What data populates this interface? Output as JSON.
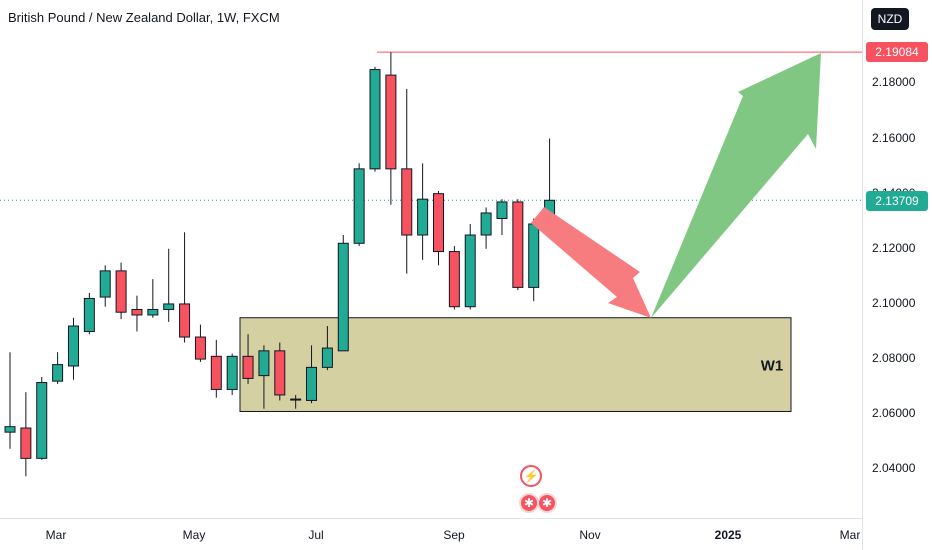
{
  "header": {
    "title": "British Pound / New Zealand Dollar, 1W, FXCM",
    "currency": "NZD"
  },
  "icons": {
    "event_flash": "lightning-icon",
    "event_flag": "uk-flag-icon"
  },
  "zone": {
    "label": "W1",
    "price_top": 2.0945,
    "price_bottom": 2.0605,
    "color": "#c9c48a"
  },
  "markers": {
    "high_price": "2.19084",
    "last_price": "2.13709"
  },
  "colors": {
    "up": "#22ab94",
    "down": "#f7525f",
    "arrow_down": "#f77c80",
    "arrow_up": "#81c784"
  },
  "chart_data": {
    "type": "candlestick",
    "title": "British Pound / New Zealand Dollar, 1W, FXCM",
    "ylim": [
      2.025,
      2.2
    ],
    "y_ticks": [
      "2.18000",
      "2.16000",
      "2.14000",
      "2.12000",
      "2.10000",
      "2.08000",
      "2.06000",
      "2.04000"
    ],
    "y_tick_values": [
      2.18,
      2.16,
      2.14,
      2.12,
      2.1,
      2.08,
      2.06,
      2.04
    ],
    "x_ticks": [
      "Mar",
      "May",
      "Jul",
      "Sep",
      "Nov",
      "2025",
      "Mar"
    ],
    "candles": [
      {
        "o": 2.053,
        "h": 2.082,
        "l": 2.047,
        "c": 2.055
      },
      {
        "o": 2.0545,
        "h": 2.0675,
        "l": 2.037,
        "c": 2.0435
      },
      {
        "o": 2.0435,
        "h": 2.073,
        "l": 2.043,
        "c": 2.071
      },
      {
        "o": 2.0715,
        "h": 2.082,
        "l": 2.0705,
        "c": 2.0775
      },
      {
        "o": 2.077,
        "h": 2.0945,
        "l": 2.072,
        "c": 2.0915
      },
      {
        "o": 2.0895,
        "h": 2.1035,
        "l": 2.0885,
        "c": 2.1015
      },
      {
        "o": 2.102,
        "h": 2.1135,
        "l": 2.0985,
        "c": 2.1115
      },
      {
        "o": 2.1115,
        "h": 2.1145,
        "l": 2.094,
        "c": 2.0965
      },
      {
        "o": 2.0975,
        "h": 2.1025,
        "l": 2.0895,
        "c": 2.0955
      },
      {
        "o": 2.0955,
        "h": 2.1085,
        "l": 2.0945,
        "c": 2.0975
      },
      {
        "o": 2.0975,
        "h": 2.1195,
        "l": 2.093,
        "c": 2.0995
      },
      {
        "o": 2.0995,
        "h": 2.1255,
        "l": 2.0855,
        "c": 2.0875
      },
      {
        "o": 2.0875,
        "h": 2.092,
        "l": 2.0785,
        "c": 2.0795
      },
      {
        "o": 2.0805,
        "h": 2.0865,
        "l": 2.0655,
        "c": 2.0685
      },
      {
        "o": 2.0685,
        "h": 2.0815,
        "l": 2.0665,
        "c": 2.0805
      },
      {
        "o": 2.0805,
        "h": 2.0885,
        "l": 2.0705,
        "c": 2.0725
      },
      {
        "o": 2.0735,
        "h": 2.0845,
        "l": 2.0615,
        "c": 2.0825
      },
      {
        "o": 2.0825,
        "h": 2.0855,
        "l": 2.0645,
        "c": 2.0665
      },
      {
        "o": 2.065,
        "h": 2.0665,
        "l": 2.0615,
        "c": 2.065
      },
      {
        "o": 2.0645,
        "h": 2.0845,
        "l": 2.0635,
        "c": 2.0765
      },
      {
        "o": 2.0765,
        "h": 2.0915,
        "l": 2.0755,
        "c": 2.0835
      },
      {
        "o": 2.0825,
        "h": 2.1245,
        "l": 2.0825,
        "c": 2.1215
      },
      {
        "o": 2.1215,
        "h": 2.1505,
        "l": 2.1205,
        "c": 2.1485
      },
      {
        "o": 2.1485,
        "h": 2.1855,
        "l": 2.1475,
        "c": 2.1845
      },
      {
        "o": 2.1825,
        "h": 2.1908,
        "l": 2.1355,
        "c": 2.1485
      },
      {
        "o": 2.1485,
        "h": 2.1775,
        "l": 2.1105,
        "c": 2.1245
      },
      {
        "o": 2.1245,
        "h": 2.1505,
        "l": 2.1155,
        "c": 2.1375
      },
      {
        "o": 2.1395,
        "h": 2.1405,
        "l": 2.1135,
        "c": 2.1185
      },
      {
        "o": 2.1185,
        "h": 2.1205,
        "l": 2.0975,
        "c": 2.0985
      },
      {
        "o": 2.0985,
        "h": 2.1285,
        "l": 2.0975,
        "c": 2.1245
      },
      {
        "o": 2.1245,
        "h": 2.1345,
        "l": 2.1195,
        "c": 2.1325
      },
      {
        "o": 2.1305,
        "h": 2.1375,
        "l": 2.1245,
        "c": 2.1365
      },
      {
        "o": 2.1365,
        "h": 2.1375,
        "l": 2.1045,
        "c": 2.1055
      },
      {
        "o": 2.1055,
        "h": 2.1305,
        "l": 2.1005,
        "c": 2.1285
      },
      {
        "o": 2.1285,
        "h": 2.1595,
        "l": 2.1255,
        "c": 2.1371
      }
    ]
  }
}
